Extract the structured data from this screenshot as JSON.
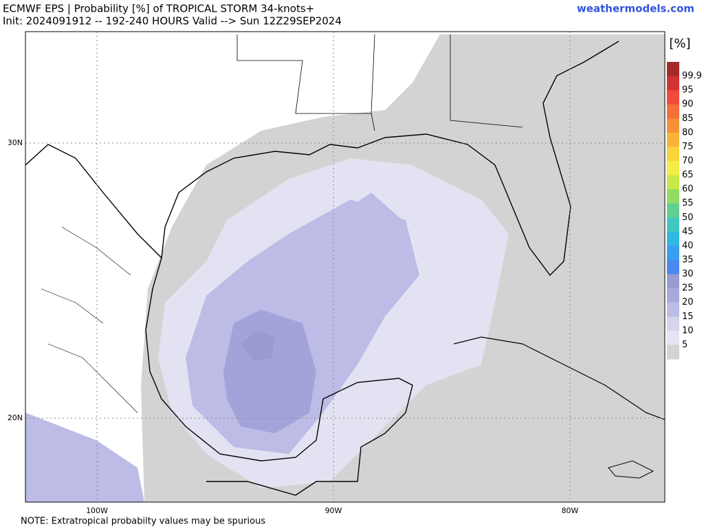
{
  "header": {
    "title": "ECMWF EPS | Probability [%] of TROPICAL STORM 34-knots+",
    "subtitle": "Init: 2024091912 -- 192-240 HOURS Valid --> Sun 12Z29SEP2024",
    "site": "weathermodels.com"
  },
  "map": {
    "lat_labels": [
      "30N",
      "20N"
    ],
    "lon_labels": [
      "100W",
      "90W",
      "80W"
    ]
  },
  "legend": {
    "unit": "[%]",
    "items": [
      {
        "label": "99.9",
        "color": "#a52a2a"
      },
      {
        "label": "95",
        "color": "#d23232"
      },
      {
        "label": "90",
        "color": "#f04a3a"
      },
      {
        "label": "85",
        "color": "#f5703a"
      },
      {
        "label": "80",
        "color": "#f8903a"
      },
      {
        "label": "75",
        "color": "#fbb23a"
      },
      {
        "label": "70",
        "color": "#fbd33a"
      },
      {
        "label": "65",
        "color": "#f2ec44"
      },
      {
        "label": "60",
        "color": "#c8e84a"
      },
      {
        "label": "55",
        "color": "#90dc60"
      },
      {
        "label": "50",
        "color": "#60d090"
      },
      {
        "label": "45",
        "color": "#40c8c0"
      },
      {
        "label": "40",
        "color": "#30b8e0"
      },
      {
        "label": "35",
        "color": "#3a9ef0"
      },
      {
        "label": "30",
        "color": "#4a88f0"
      },
      {
        "label": "25",
        "color": "#9a9ad2"
      },
      {
        "label": "20",
        "color": "#a9a9dc"
      },
      {
        "label": "15",
        "color": "#bcbce6"
      },
      {
        "label": "10",
        "color": "#d4d4ee"
      },
      {
        "label": "5",
        "color": "#e4e4f2"
      },
      {
        "label": "",
        "color": "#d3d3d3"
      }
    ]
  },
  "note": "NOTE: Extratropical probabilty values may be spurious"
}
